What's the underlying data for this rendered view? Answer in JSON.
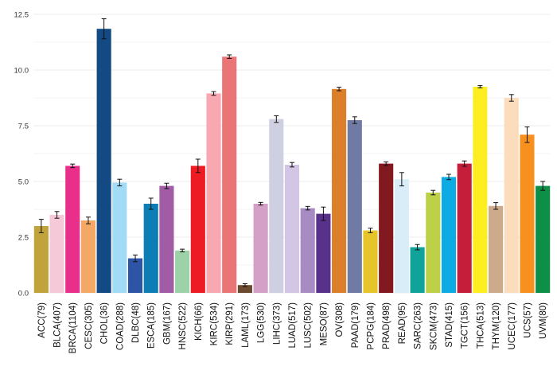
{
  "chart_data": {
    "type": "bar",
    "title": "",
    "xlabel": "",
    "ylabel": "",
    "ylim": [
      0,
      12.5
    ],
    "y_ticks": [
      "0.0",
      "2.5",
      "5.0",
      "7.5",
      "10.0",
      "12.5"
    ],
    "grid": true,
    "legend": "none",
    "categories": [
      "ACC(79)",
      "BLCA(407)",
      "BRCA(1104)",
      "CESC(305)",
      "CHOL(36)",
      "COAD(288)",
      "DLBC(48)",
      "ESCA(185)",
      "GBM(167)",
      "HNSC(522)",
      "KICH(66)",
      "KIRC(534)",
      "KIRP(291)",
      "LAML(173)",
      "LGG(530)",
      "LIHC(373)",
      "LUAD(517)",
      "LUSC(502)",
      "MESO(87)",
      "OV(308)",
      "PAAD(179)",
      "PCPG(184)",
      "PRAD(498)",
      "READ(95)",
      "SARC(263)",
      "SKCM(473)",
      "STAD(415)",
      "TGCT(156)",
      "THCA(513)",
      "THYM(120)",
      "UCEC(177)",
      "UCS(57)",
      "UVM(80)"
    ],
    "values": [
      3.0,
      3.5,
      5.7,
      3.25,
      11.85,
      4.95,
      1.55,
      4.0,
      4.8,
      1.9,
      5.7,
      8.95,
      10.6,
      0.35,
      4.0,
      7.8,
      5.75,
      3.8,
      3.55,
      9.15,
      7.75,
      2.8,
      5.8,
      5.1,
      2.05,
      4.5,
      5.2,
      5.8,
      9.25,
      3.9,
      8.75,
      7.1,
      4.8
    ],
    "errors": [
      0.3,
      0.15,
      0.08,
      0.15,
      0.45,
      0.15,
      0.15,
      0.25,
      0.12,
      0.06,
      0.3,
      0.08,
      0.08,
      0.06,
      0.06,
      0.15,
      0.1,
      0.08,
      0.3,
      0.08,
      0.15,
      0.1,
      0.08,
      0.3,
      0.12,
      0.1,
      0.12,
      0.12,
      0.05,
      0.15,
      0.15,
      0.35,
      0.2
    ],
    "colors": [
      "#C0A33A",
      "#F6C9D9",
      "#E8308B",
      "#F3A865",
      "#134A83",
      "#A1DBF5",
      "#2E54A5",
      "#0C7DB5",
      "#A15CA5",
      "#9DD2A8",
      "#ED1C24",
      "#F7A8B0",
      "#E97577",
      "#6C4A2F",
      "#D4A0C8",
      "#CFCFE2",
      "#D3C5E4",
      "#A78CC4",
      "#58328A",
      "#DB7F2B",
      "#6F7BA4",
      "#E5C52A",
      "#82191F",
      "#D9EDF9",
      "#0FA39A",
      "#BCD048",
      "#0CABE3",
      "#C41E3A",
      "#FCEE21",
      "#CDAA8C",
      "#FBDDBE",
      "#F7901E",
      "#0E8F47"
    ]
  }
}
